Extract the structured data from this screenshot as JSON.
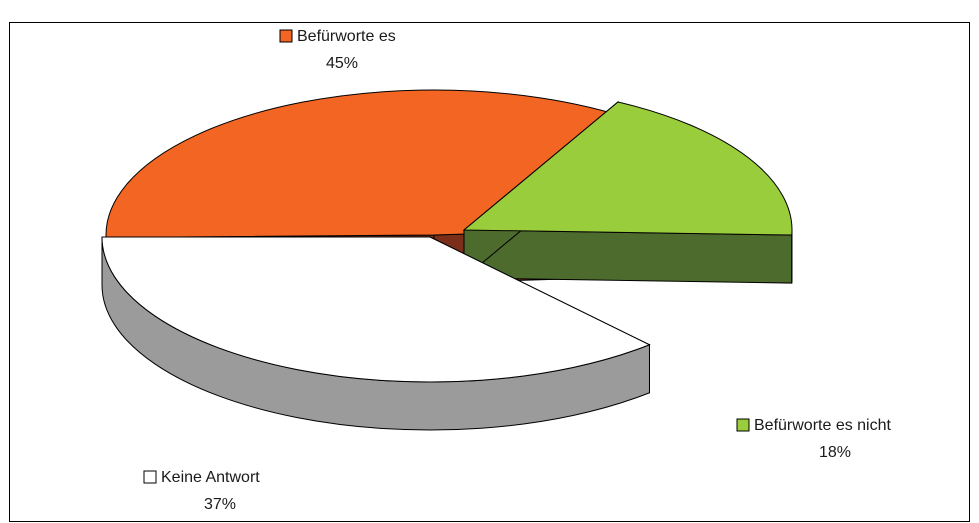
{
  "chart_data": {
    "type": "pie",
    "title": "",
    "style": "3d-exploded",
    "slices": [
      {
        "label": "Befürworte es",
        "value": 45,
        "percent_label": "45%",
        "color": "#F26522",
        "side_color": "#7B2E1A"
      },
      {
        "label": "Befürworte es nicht",
        "value": 18,
        "percent_label": "18%",
        "color": "#9ACD3C",
        "side_color": "#4E6B2E"
      },
      {
        "label": "Keine Antwort",
        "value": 37,
        "percent_label": "37%",
        "color": "#FFFFFF",
        "side_color": "#9B9B9B"
      }
    ],
    "legend": "labels-beside-slices"
  }
}
